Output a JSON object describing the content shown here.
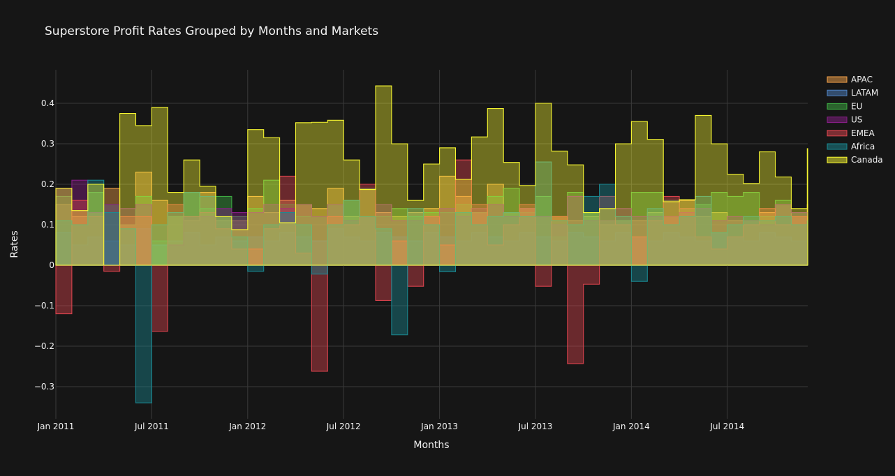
{
  "chart_data": {
    "type": "area",
    "title": "Superstore Profit Rates Grouped by Months and Markets",
    "xlabel": "Months",
    "ylabel": "Rates",
    "x_ticks": [
      "Jan 2011",
      "Jul 2011",
      "Jan 2012",
      "Jul 2012",
      "Jan 2013",
      "Jul 2013",
      "Jan 2014",
      "Jul 2014"
    ],
    "y_ticks": [
      "0.4",
      "0.3",
      "0.2",
      "0.1",
      "0",
      "−0.1",
      "−0.2",
      "−0.3"
    ],
    "ylim": [
      -0.35,
      0.48
    ],
    "step": "hv",
    "grid": true,
    "legend_position": "top-right",
    "months": [
      "2011-01",
      "2011-02",
      "2011-03",
      "2011-04",
      "2011-05",
      "2011-06",
      "2011-07",
      "2011-08",
      "2011-09",
      "2011-10",
      "2011-11",
      "2011-12",
      "2012-01",
      "2012-02",
      "2012-03",
      "2012-04",
      "2012-05",
      "2012-06",
      "2012-07",
      "2012-08",
      "2012-09",
      "2012-10",
      "2012-11",
      "2012-12",
      "2013-01",
      "2013-02",
      "2013-03",
      "2013-04",
      "2013-05",
      "2013-06",
      "2013-07",
      "2013-08",
      "2013-09",
      "2013-10",
      "2013-11",
      "2013-12",
      "2014-01",
      "2014-02",
      "2014-03",
      "2014-04",
      "2014-05",
      "2014-06",
      "2014-07",
      "2014-08",
      "2014-09",
      "2014-10",
      "2014-11",
      "2014-12"
    ],
    "series": [
      {
        "name": "APAC",
        "color": "#f5a34a",
        "values": [
          0.15,
          0.12,
          0.13,
          0.19,
          0.1,
          0.23,
          0.16,
          0.12,
          0.11,
          0.18,
          0.11,
          0.11,
          0.17,
          0.13,
          0.16,
          0.15,
          0.14,
          0.19,
          0.12,
          0.12,
          0.13,
          0.12,
          0.13,
          0.14,
          0.22,
          0.17,
          0.13,
          0.2,
          0.13,
          0.14,
          0.12,
          0.12,
          0.11,
          0.12,
          0.1,
          0.11,
          0.11,
          0.13,
          0.12,
          0.16,
          0.12,
          0.13,
          0.11,
          0.11,
          0.13,
          0.15,
          0.12,
          0.15
        ]
      },
      {
        "name": "LATAM",
        "color": "#4f83c4",
        "values": [
          0.08,
          0.05,
          0.07,
          0.06,
          0.05,
          0.09,
          0.05,
          0.06,
          0.08,
          0.05,
          0.07,
          0.06,
          0.07,
          0.06,
          0.08,
          0.07,
          0.06,
          0.09,
          0.07,
          0.06,
          0.08,
          0.07,
          0.06,
          0.08,
          0.07,
          0.06,
          0.08,
          0.07,
          0.06,
          0.08,
          0.07,
          0.06,
          0.08,
          0.07,
          0.06,
          0.08,
          0.07,
          0.06,
          0.08,
          0.07,
          0.06,
          0.08,
          0.07,
          0.06,
          0.08,
          0.07,
          0.06,
          0.08
        ]
      },
      {
        "name": "EU",
        "color": "#3fb044",
        "values": [
          0.17,
          0.1,
          0.18,
          0.15,
          0.1,
          0.17,
          0.06,
          0.12,
          0.18,
          0.14,
          0.17,
          0.12,
          0.14,
          0.21,
          0.15,
          0.12,
          0.12,
          0.15,
          0.16,
          0.19,
          0.12,
          0.14,
          0.12,
          0.13,
          0.13,
          0.15,
          0.13,
          0.17,
          0.19,
          0.13,
          0.17,
          0.07,
          0.18,
          0.13,
          0.11,
          0.11,
          0.18,
          0.18,
          0.16,
          0.14,
          0.15,
          0.18,
          0.17,
          0.18,
          0.12,
          0.16,
          0.13,
          0.12
        ]
      },
      {
        "name": "US",
        "color": "#8a1f8a",
        "values": [
          0.19,
          0.21,
          0.13,
          0.15,
          0.14,
          0.15,
          0.0,
          0.05,
          0.12,
          0.12,
          0.14,
          0.13,
          0.13,
          0.15,
          0.14,
          0.15,
          0.12,
          0.15,
          0.11,
          0.12,
          0.15,
          0.11,
          0.11,
          0.12,
          0.14,
          0.12,
          0.14,
          0.15,
          0.12,
          0.14,
          0.12,
          0.1,
          0.17,
          0.11,
          0.11,
          0.14,
          0.12,
          0.12,
          0.12,
          0.13,
          0.14,
          0.11,
          0.12,
          0.11,
          0.1,
          0.15,
          0.13,
          0.1
        ]
      },
      {
        "name": "EMEA",
        "color": "#e0454f",
        "values": [
          -0.12,
          0.16,
          0.12,
          -0.015,
          0.12,
          0.12,
          -0.163,
          0.15,
          0.12,
          0.13,
          0.09,
          0.04,
          0.04,
          0.09,
          0.22,
          0.03,
          -0.262,
          0.12,
          0.1,
          0.2,
          -0.087,
          0.06,
          -0.052,
          0.12,
          0.05,
          0.26,
          0.15,
          0.05,
          0.1,
          0.15,
          -0.052,
          0.12,
          -0.243,
          -0.047,
          0.17,
          0.1,
          0.07,
          0.11,
          0.17,
          0.14,
          0.07,
          0.04,
          0.07,
          0.1,
          0.14,
          0.1,
          0.12,
          0.11
        ]
      },
      {
        "name": "Africa",
        "color": "#1a8a93",
        "values": [
          0.11,
          0.1,
          0.21,
          0.13,
          0.09,
          -0.34,
          0.1,
          0.13,
          0.18,
          0.17,
          0.12,
          0.07,
          -0.015,
          0.1,
          0.13,
          0.1,
          -0.022,
          0.1,
          0.16,
          0.12,
          0.09,
          -0.172,
          0.14,
          0.1,
          -0.016,
          0.13,
          0.1,
          0.12,
          0.13,
          0.12,
          0.255,
          0.11,
          0.1,
          0.17,
          0.2,
          0.12,
          -0.04,
          0.14,
          0.1,
          0.12,
          0.17,
          0.08,
          0.1,
          0.12,
          0.11,
          0.12,
          0.1,
          0.11
        ]
      },
      {
        "name": "Canada",
        "color": "#ffff33",
        "values": [
          0.19,
          0.135,
          0.2,
          0.0,
          0.375,
          0.345,
          0.39,
          0.18,
          0.26,
          0.195,
          0.12,
          0.088,
          0.335,
          0.315,
          0.105,
          0.352,
          0.353,
          0.358,
          0.26,
          0.187,
          0.443,
          0.3,
          0.16,
          0.25,
          0.29,
          0.212,
          0.317,
          0.387,
          0.254,
          0.197,
          0.4,
          0.282,
          0.248,
          0.13,
          0.14,
          0.3,
          0.355,
          0.311,
          0.157,
          0.162,
          0.37,
          0.3,
          0.225,
          0.202,
          0.28,
          0.218,
          0.14,
          0.288
        ]
      }
    ]
  }
}
